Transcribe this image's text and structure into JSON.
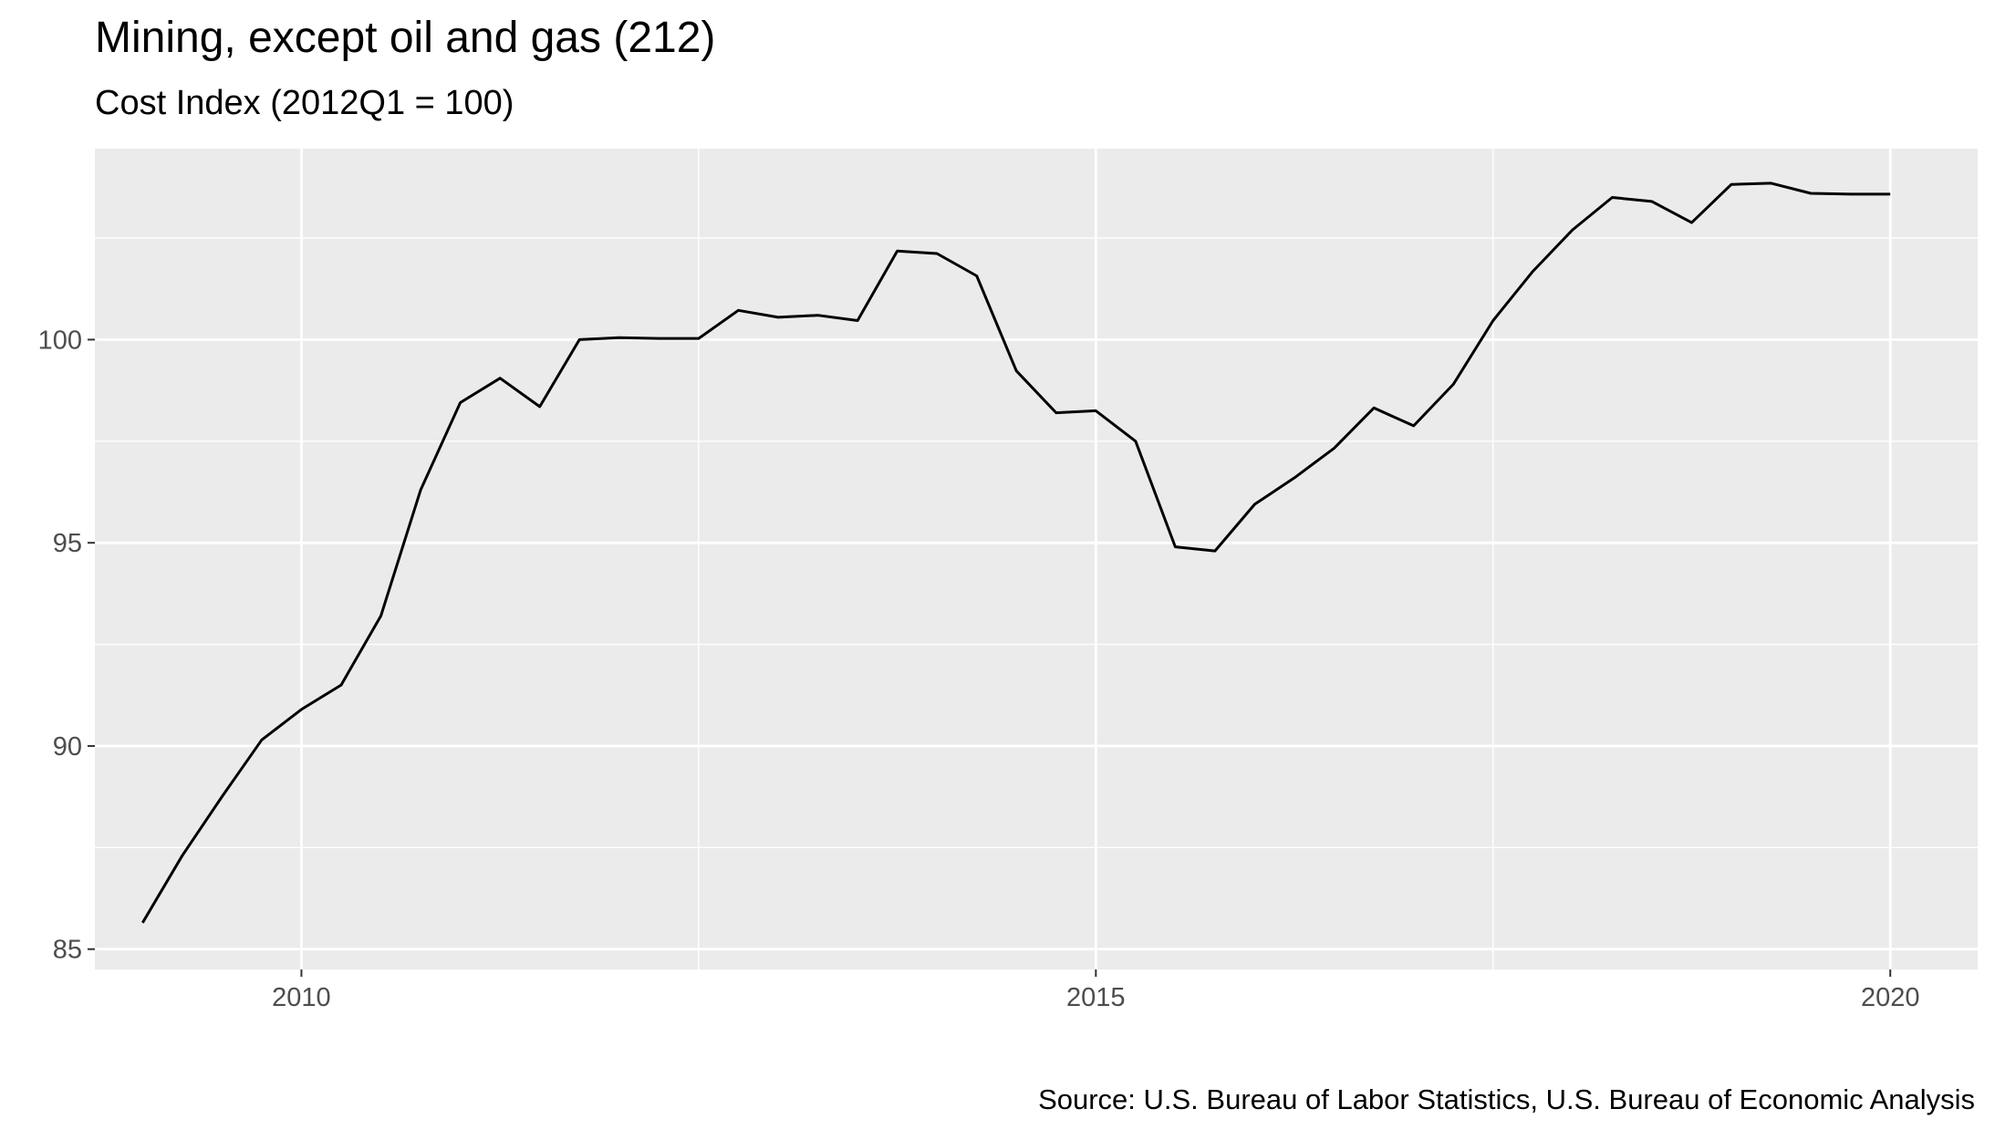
{
  "chart_data": {
    "type": "line",
    "title": "Mining, except oil and gas (212)",
    "subtitle": "Cost Index (2012Q1 = 100)",
    "caption": "Source: U.S. Bureau of Labor Statistics, U.S. Bureau of Economic Analysis",
    "xlabel": "",
    "ylabel": "",
    "xlim": [
      2008.7,
      2020.55
    ],
    "ylim": [
      84.5,
      104.7
    ],
    "x_ticks": [
      2010,
      2015,
      2020
    ],
    "x_tick_labels": [
      "2010",
      "2015",
      "2020"
    ],
    "y_ticks": [
      85,
      90,
      95,
      100
    ],
    "y_tick_labels": [
      "85",
      "90",
      "95",
      "100"
    ],
    "grid": true,
    "line_color": "#000000",
    "background_color": "#ebebeb",
    "grid_color": "#ffffff",
    "series": [
      {
        "x": [
          2009.0,
          2009.25,
          2009.5,
          2009.75,
          2010.0,
          2010.25,
          2010.5,
          2010.75,
          2011.0,
          2011.25,
          2011.5,
          2011.75,
          2012.0,
          2012.25,
          2012.5,
          2012.75,
          2013.0,
          2013.25,
          2013.5,
          2013.75,
          2014.0,
          2014.25,
          2014.5,
          2014.75,
          2015.0,
          2015.25,
          2015.5,
          2015.75,
          2016.0,
          2016.25,
          2016.5,
          2016.75,
          2017.0,
          2017.25,
          2017.5,
          2017.75,
          2018.0,
          2018.25,
          2018.5,
          2018.75,
          2019.0,
          2019.25,
          2019.5,
          2019.75,
          2020.0
        ],
        "y": [
          85.65,
          87.3,
          88.75,
          90.15,
          90.9,
          91.5,
          93.2,
          96.3,
          98.45,
          99.05,
          98.35,
          100.0,
          100.05,
          100.03,
          100.03,
          100.72,
          100.55,
          100.6,
          100.47,
          102.18,
          102.12,
          101.57,
          99.23,
          98.2,
          98.25,
          97.5,
          94.9,
          94.8,
          95.95,
          96.6,
          97.33,
          98.32,
          97.88,
          98.9,
          100.47,
          101.68,
          102.7,
          103.5,
          103.4,
          102.88,
          103.82,
          103.85,
          103.6,
          103.58,
          103.58
        ]
      }
    ]
  }
}
